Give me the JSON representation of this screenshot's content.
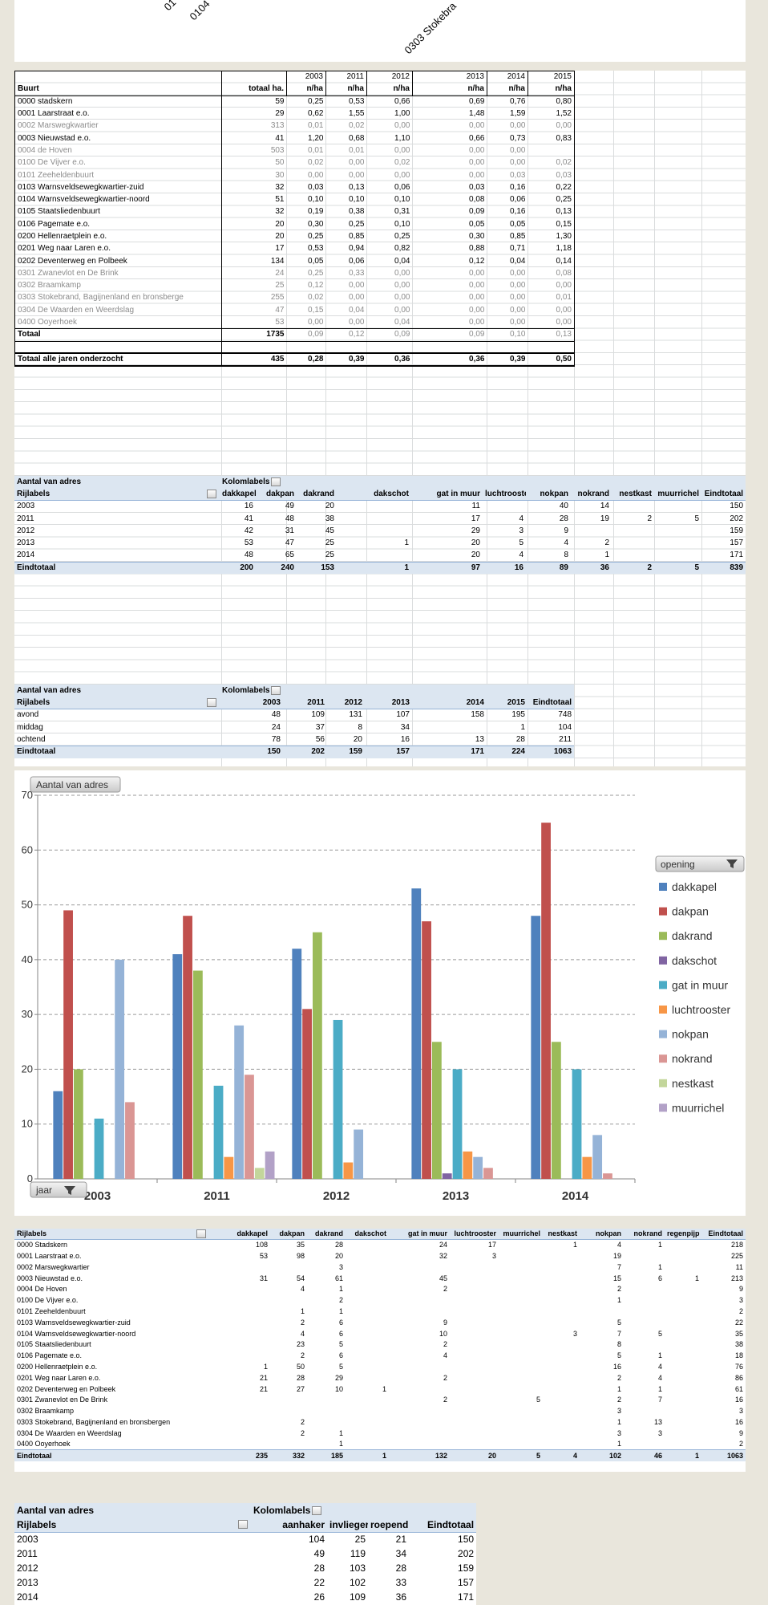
{
  "top_labels": [
    "01",
    "0104",
    "0303 Stokebra"
  ],
  "density_table": {
    "header": [
      [
        null,
        null,
        "2003",
        "2011",
        "2012",
        "2013",
        "2014",
        "2015"
      ],
      [
        "Buurt",
        "totaal ha.",
        "n/ha",
        "n/ha",
        "n/ha",
        "n/ha",
        "n/ha",
        "n/ha"
      ]
    ],
    "rows": [
      [
        "0000 stadskern",
        59,
        "0,25",
        "0,53",
        "0,66",
        "0,69",
        "0,76",
        "0,80"
      ],
      [
        "0001 Laarstraat e.o.",
        29,
        "0,62",
        "1,55",
        "1,00",
        "1,48",
        "1,59",
        "1,52"
      ],
      [
        "0002 Marswegkwartier",
        313,
        "0,01",
        "0,02",
        "0,00",
        "0,00",
        "0,00",
        "0,00"
      ],
      [
        "0003 Nieuwstad e.o.",
        41,
        "1,20",
        "0,68",
        "1,10",
        "0,66",
        "0,73",
        "0,83"
      ],
      [
        "0004 de Hoven",
        503,
        "0,01",
        "0,01",
        "0,00",
        "0,00",
        "0,00",
        null
      ],
      [
        "0100 De Vijver e.o.",
        50,
        "0,02",
        "0,00",
        "0,02",
        "0,00",
        "0,00",
        "0,02"
      ],
      [
        "0101 Zeeheldenbuurt",
        30,
        "0,00",
        "0,00",
        "0,00",
        "0,00",
        "0,03",
        "0,03"
      ],
      [
        "0103 Warnsveldsewegkwartier-zuid",
        32,
        "0,03",
        "0,13",
        "0,06",
        "0,03",
        "0,16",
        "0,22"
      ],
      [
        "0104 Warnsveldsewegkwartier-noord",
        51,
        "0,10",
        "0,10",
        "0,10",
        "0,08",
        "0,06",
        "0,25"
      ],
      [
        "0105 Staatsliedenbuurt",
        32,
        "0,19",
        "0,38",
        "0,31",
        "0,09",
        "0,16",
        "0,13"
      ],
      [
        "0106 Pagemate e.o.",
        20,
        "0,30",
        "0,25",
        "0,10",
        "0,05",
        "0,05",
        "0,15"
      ],
      [
        "0200 Hellenraetplein e.o.",
        20,
        "0,25",
        "0,85",
        "0,25",
        "0,30",
        "0,85",
        "1,30"
      ],
      [
        "0201 Weg naar Laren e.o.",
        17,
        "0,53",
        "0,94",
        "0,82",
        "0,88",
        "0,71",
        "1,18"
      ],
      [
        "0202 Deventerweg en Polbeek",
        134,
        "0,05",
        "0,06",
        "0,04",
        "0,12",
        "0,04",
        "0,14"
      ],
      [
        "0301 Zwanevlot en De Brink",
        24,
        "0,25",
        "0,33",
        "0,00",
        "0,00",
        "0,00",
        "0,08"
      ],
      [
        "0302 Braamkamp",
        25,
        "0,12",
        "0,00",
        "0,00",
        "0,00",
        "0,00",
        "0,00"
      ],
      [
        "0303 Stokebrand, Bagijnenland en bronsberge",
        255,
        "0,02",
        "0,00",
        "0,00",
        "0,00",
        "0,00",
        "0,01"
      ],
      [
        "0304 De Waarden en Weerdslag",
        47,
        "0,15",
        "0,04",
        "0,00",
        "0,00",
        "0,00",
        "0,00"
      ],
      [
        "0400 Ooyerhoek",
        53,
        "0,00",
        "0,00",
        "0,04",
        "0,00",
        "0,00",
        "0,00"
      ]
    ],
    "total_row": [
      "Totaal",
      1735,
      "0,09",
      "0,12",
      "0,09",
      "0,09",
      "0,10",
      "0,13"
    ],
    "all_years_row": [
      "Totaal alle jaren onderzocht",
      435,
      "0,28",
      "0,39",
      "0,36",
      "0,36",
      "0,39",
      "0,50"
    ]
  },
  "opening_by_year": {
    "value_caption": "Aantal van adres",
    "column_caption": "Kolomlabels",
    "row_caption": "Rijlabels",
    "columns": [
      "dakkapel",
      "dakpan",
      "dakrand",
      "dakschot",
      "gat in muur",
      "luchtrooster",
      "nokpan",
      "nokrand",
      "nestkast",
      "muurrichel",
      "Eindtotaal"
    ],
    "rows": [
      {
        "label": "2003",
        "values": [
          16,
          49,
          20,
          null,
          11,
          null,
          40,
          14,
          null,
          null,
          150
        ]
      },
      {
        "label": "2011",
        "values": [
          41,
          48,
          38,
          null,
          17,
          4,
          28,
          19,
          2,
          5,
          202
        ]
      },
      {
        "label": "2012",
        "values": [
          42,
          31,
          45,
          null,
          29,
          3,
          9,
          null,
          null,
          null,
          159
        ]
      },
      {
        "label": "2013",
        "values": [
          53,
          47,
          25,
          1,
          20,
          5,
          4,
          2,
          null,
          null,
          157
        ]
      },
      {
        "label": "2014",
        "values": [
          48,
          65,
          25,
          null,
          20,
          4,
          8,
          1,
          null,
          null,
          171
        ]
      }
    ],
    "grand_total": {
      "label": "Eindtotaal",
      "values": [
        200,
        240,
        153,
        1,
        97,
        16,
        89,
        36,
        2,
        5,
        839
      ]
    }
  },
  "daypart_by_year": {
    "value_caption": "Aantal van adres",
    "column_caption": "Kolomlabels",
    "row_caption": "Rijlabels",
    "columns": [
      "2003",
      "2011",
      "2012",
      "2013",
      "2014",
      "2015",
      "Eindtotaal"
    ],
    "rows": [
      {
        "label": "avond",
        "values": [
          48,
          109,
          131,
          107,
          158,
          195,
          748
        ]
      },
      {
        "label": "middag",
        "values": [
          24,
          37,
          8,
          34,
          null,
          1,
          104
        ]
      },
      {
        "label": "ochtend",
        "values": [
          78,
          56,
          20,
          16,
          13,
          28,
          211
        ]
      }
    ],
    "grand_total": {
      "label": "Eindtotaal",
      "values": [
        150,
        202,
        159,
        157,
        171,
        224,
        1063
      ]
    }
  },
  "chart_data": {
    "type": "bar",
    "y_button": "Aantal van adres",
    "x_button": "jaar",
    "legend_title": "opening",
    "legend": "right",
    "grid": true,
    "categories": [
      "2003",
      "2011",
      "2012",
      "2013",
      "2014"
    ],
    "ylim": [
      0,
      70
    ],
    "yticks": [
      0,
      10,
      20,
      30,
      40,
      50,
      60,
      70
    ],
    "series": [
      {
        "name": "dakkapel",
        "color": "#4f81bd",
        "values": [
          16,
          41,
          42,
          53,
          48
        ]
      },
      {
        "name": "dakpan",
        "color": "#c0504d",
        "values": [
          49,
          48,
          31,
          47,
          65
        ]
      },
      {
        "name": "dakrand",
        "color": "#9bbb59",
        "values": [
          20,
          38,
          45,
          25,
          25
        ]
      },
      {
        "name": "dakschot",
        "color": "#8064a2",
        "values": [
          null,
          null,
          null,
          1,
          null
        ]
      },
      {
        "name": "gat in muur",
        "color": "#4bacc6",
        "values": [
          11,
          17,
          29,
          20,
          20
        ]
      },
      {
        "name": "luchtrooster",
        "color": "#f79646",
        "values": [
          null,
          4,
          3,
          5,
          4
        ]
      },
      {
        "name": "nokpan",
        "color": "#95b3d7",
        "values": [
          40,
          28,
          9,
          4,
          8
        ]
      },
      {
        "name": "nokrand",
        "color": "#da9694",
        "values": [
          14,
          19,
          null,
          2,
          1
        ]
      },
      {
        "name": "nestkast",
        "color": "#c3d69b",
        "values": [
          null,
          2,
          null,
          null,
          null
        ]
      },
      {
        "name": "muurrichel",
        "color": "#b2a1c7",
        "values": [
          null,
          5,
          null,
          null,
          null
        ]
      }
    ]
  },
  "opening_by_buurt": {
    "row_caption": "Rijlabels",
    "columns": [
      "dakkapel",
      "dakpan",
      "dakrand",
      "dakschot",
      "gat in muur",
      "luchtrooster",
      "muurrichel",
      "nestkast",
      "nokpan",
      "nokrand",
      "regenpijp",
      "Eindtotaal"
    ],
    "rows": [
      {
        "label": "0000 Stadskern",
        "values": [
          108,
          35,
          28,
          null,
          24,
          17,
          null,
          1,
          4,
          1,
          null,
          218
        ]
      },
      {
        "label": "0001 Laarstraat e.o.",
        "values": [
          53,
          98,
          20,
          null,
          32,
          3,
          null,
          null,
          19,
          null,
          null,
          225
        ]
      },
      {
        "label": "0002 Marswegkwartier",
        "values": [
          null,
          null,
          3,
          null,
          null,
          null,
          null,
          null,
          7,
          1,
          null,
          11
        ]
      },
      {
        "label": "0003 Nieuwstad e.o.",
        "values": [
          31,
          54,
          61,
          null,
          45,
          null,
          null,
          null,
          15,
          6,
          1,
          213
        ]
      },
      {
        "label": "0004 De Hoven",
        "values": [
          null,
          4,
          1,
          null,
          2,
          null,
          null,
          null,
          2,
          null,
          null,
          9
        ]
      },
      {
        "label": "0100 De Vijver e.o.",
        "values": [
          null,
          null,
          2,
          null,
          null,
          null,
          null,
          null,
          1,
          null,
          null,
          3
        ]
      },
      {
        "label": "0101 Zeeheldenbuurt",
        "values": [
          null,
          1,
          1,
          null,
          null,
          null,
          null,
          null,
          null,
          null,
          null,
          2
        ]
      },
      {
        "label": "0103 Warnsveldsewegkwartier-zuid",
        "values": [
          null,
          2,
          6,
          null,
          9,
          null,
          null,
          null,
          5,
          null,
          null,
          22
        ]
      },
      {
        "label": "0104 Warnsveldsewegkwartier-noord",
        "values": [
          null,
          4,
          6,
          null,
          10,
          null,
          null,
          3,
          7,
          5,
          null,
          35
        ]
      },
      {
        "label": "0105 Staatsliedenbuurt",
        "values": [
          null,
          23,
          5,
          null,
          2,
          null,
          null,
          null,
          8,
          null,
          null,
          38
        ]
      },
      {
        "label": "0106 Pagemate e.o.",
        "values": [
          null,
          2,
          6,
          null,
          4,
          null,
          null,
          null,
          5,
          1,
          null,
          18
        ]
      },
      {
        "label": "0200 Hellenraetplein e.o.",
        "values": [
          1,
          50,
          5,
          null,
          null,
          null,
          null,
          null,
          16,
          4,
          null,
          76
        ]
      },
      {
        "label": "0201 Weg naar Laren e.o.",
        "values": [
          21,
          28,
          29,
          null,
          2,
          null,
          null,
          null,
          2,
          4,
          null,
          86
        ]
      },
      {
        "label": "0202 Deventerweg en Polbeek",
        "values": [
          21,
          27,
          10,
          1,
          null,
          null,
          null,
          null,
          1,
          1,
          null,
          61
        ]
      },
      {
        "label": "0301 Zwanevlot en De Brink",
        "values": [
          null,
          null,
          null,
          null,
          2,
          null,
          5,
          null,
          2,
          7,
          null,
          16
        ]
      },
      {
        "label": "0302 Braamkamp",
        "values": [
          null,
          null,
          null,
          null,
          null,
          null,
          null,
          null,
          3,
          null,
          null,
          3
        ]
      },
      {
        "label": "0303 Stokebrand, Bagijnenland en bronsbergen",
        "values": [
          null,
          2,
          null,
          null,
          null,
          null,
          null,
          null,
          1,
          13,
          null,
          16
        ]
      },
      {
        "label": "0304 De Waarden en Weerdslag",
        "values": [
          null,
          2,
          1,
          null,
          null,
          null,
          null,
          null,
          3,
          3,
          null,
          9
        ]
      },
      {
        "label": "0400 Ooyerhoek",
        "values": [
          null,
          null,
          1,
          null,
          null,
          null,
          null,
          null,
          1,
          null,
          null,
          2
        ]
      }
    ],
    "grand_total": {
      "label": "Eindtotaal",
      "values": [
        235,
        332,
        185,
        1,
        132,
        20,
        5,
        4,
        102,
        46,
        1,
        1063
      ]
    }
  },
  "behaviour_by_year": {
    "value_caption": "Aantal van adres",
    "column_caption": "Kolomlabels",
    "row_caption": "Rijlabels",
    "columns": [
      "aanhaker",
      "invlieger",
      "roepend",
      "Eindtotaal"
    ],
    "rows": [
      {
        "label": "2003",
        "values": [
          104,
          25,
          21,
          150
        ]
      },
      {
        "label": "2011",
        "values": [
          49,
          119,
          34,
          202
        ]
      },
      {
        "label": "2012",
        "values": [
          28,
          103,
          28,
          159
        ]
      },
      {
        "label": "2013",
        "values": [
          22,
          102,
          33,
          157
        ]
      },
      {
        "label": "2014",
        "values": [
          26,
          109,
          36,
          171
        ]
      }
    ]
  }
}
